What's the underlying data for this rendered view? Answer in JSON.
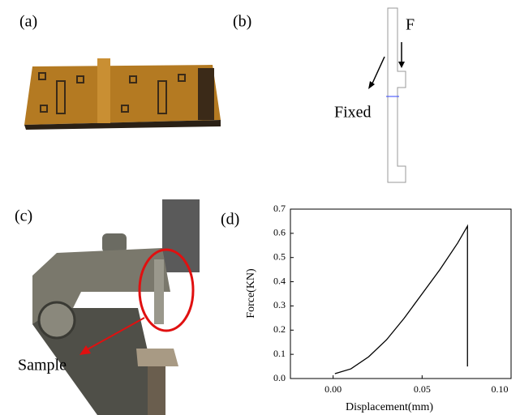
{
  "panels": [
    {
      "label": "(a)"
    },
    {
      "label": "(b)",
      "annotations": [
        "F",
        "Fixed"
      ]
    },
    {
      "label": "(c)",
      "annotations": [
        "Sample"
      ]
    },
    {
      "label": "(d)"
    }
  ],
  "chart_data": {
    "type": "line",
    "x_label": "Displacement(mm)",
    "y_label": "Force(KN)",
    "x": [
      0.001,
      0.01,
      0.02,
      0.03,
      0.04,
      0.05,
      0.06,
      0.07,
      0.0755,
      0.0755
    ],
    "values": [
      0.02,
      0.04,
      0.09,
      0.16,
      0.25,
      0.35,
      0.45,
      0.56,
      0.63,
      0.05
    ],
    "color": "#000000",
    "xlim": [
      -0.024,
      0.1
    ],
    "xticks": [
      {
        "value": 0,
        "label": "0.00"
      },
      0.05,
      {
        "value": 0.1,
        "label": "0.10"
      }
    ],
    "ylim": [
      0,
      0.7
    ],
    "yticks": [
      {
        "value": 0,
        "label": "0.0"
      },
      0.1,
      0.2,
      0.3,
      0.4,
      0.5,
      0.6,
      0.7
    ]
  }
}
